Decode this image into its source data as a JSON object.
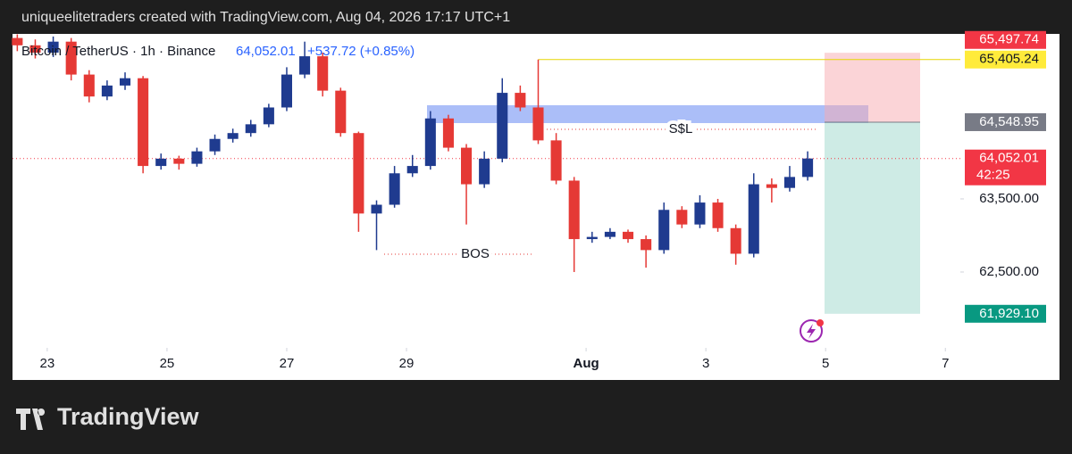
{
  "header": "uniqueelitetraders created with TradingView.com, Aug 04, 2026 17:17 UTC+1",
  "footer_logo": "TradingView",
  "chart_data": {
    "type": "candlestick",
    "symbol": "Bitcoin / TetherUS · 1h · Binance",
    "legend_price": "64,052.01",
    "legend_change": "+537.72 (+0.85%)",
    "x": [
      22.5,
      22.8,
      23.1,
      23.4,
      23.7,
      24.0,
      24.3,
      24.6,
      24.9,
      25.2,
      25.5,
      25.8,
      26.1,
      26.4,
      26.7,
      27.0,
      27.3,
      27.6,
      27.9,
      28.2,
      28.5,
      28.8,
      29.1,
      29.4,
      29.7,
      30.0,
      30.3,
      30.6,
      30.9,
      31.2,
      31.5,
      31.8,
      32.1,
      32.4,
      32.7,
      33.0,
      33.3,
      33.6,
      33.9,
      34.2,
      34.5,
      34.8,
      35.1,
      35.4,
      35.7
    ],
    "open": [
      65700,
      65600,
      65500,
      65650,
      65200,
      64900,
      65050,
      65150,
      63950,
      64050,
      63980,
      64150,
      64320,
      64400,
      64520,
      64750,
      65200,
      65450,
      64980,
      64400,
      63300,
      63420,
      63850,
      63950,
      64600,
      64200,
      63700,
      64050,
      64950,
      64750,
      64300,
      63750,
      62950,
      62980,
      63050,
      62950,
      62800,
      63350,
      63150,
      63450,
      63100,
      62750,
      63700,
      63650,
      63800
    ],
    "high": [
      65750,
      65680,
      65720,
      65700,
      65260,
      65120,
      65230,
      65180,
      64120,
      64090,
      64200,
      64380,
      64460,
      64580,
      64800,
      65300,
      65650,
      65500,
      65020,
      64420,
      63480,
      63950,
      64100,
      64700,
      64650,
      64250,
      64150,
      65150,
      65050,
      65405,
      64400,
      63800,
      63050,
      63100,
      63080,
      63000,
      63450,
      63400,
      63550,
      63500,
      63150,
      63850,
      63780,
      63950,
      64150
    ],
    "low": [
      65520,
      65420,
      65440,
      65120,
      64820,
      64850,
      64990,
      63850,
      63900,
      63900,
      63940,
      64100,
      64270,
      64350,
      64480,
      64700,
      65150,
      64900,
      64350,
      63050,
      62800,
      63380,
      63800,
      63900,
      64150,
      63150,
      63650,
      64000,
      64700,
      64250,
      63700,
      62500,
      62900,
      62950,
      62900,
      62560,
      62750,
      63100,
      63100,
      63050,
      62600,
      62700,
      63450,
      63600,
      63750
    ],
    "close": [
      65600,
      65500,
      65650,
      65200,
      64900,
      65050,
      65150,
      63950,
      64050,
      63980,
      64150,
      64320,
      64400,
      64520,
      64750,
      65200,
      65450,
      64980,
      64400,
      63300,
      63420,
      63850,
      63950,
      64600,
      64200,
      63700,
      64050,
      64950,
      64750,
      64300,
      63750,
      62950,
      62980,
      63050,
      62950,
      62800,
      63350,
      63150,
      63450,
      63100,
      62750,
      63700,
      63650,
      63800,
      64052.01
    ],
    "up_color": "#1f3b8f",
    "down_color": "#e53935",
    "xlim": [
      22.42,
      38.25
    ],
    "ylim": [
      61463,
      65756
    ],
    "xticks": [
      23,
      25,
      27,
      29,
      {
        "value": 32,
        "label": "Aug"
      },
      {
        "value": 34,
        "label": "3"
      },
      {
        "value": 36,
        "label": "5"
      },
      {
        "value": 38,
        "label": "7"
      }
    ],
    "yticks": [
      {
        "value": 63500,
        "label": "63,500.00"
      },
      {
        "value": 62500,
        "label": "62,500.00"
      }
    ],
    "levels": [
      {
        "value": 65497.74,
        "label": "65,497.74",
        "color": "#f23645"
      },
      {
        "value": 65405.24,
        "label": "65,405.24",
        "color": "#ffeb3b"
      },
      {
        "value": 64548.95,
        "label": "64,548.95",
        "color": "#787b86"
      },
      {
        "value": 64052.01,
        "label": "64,052.01",
        "color": "#f23645"
      },
      {
        "value": 61929.1,
        "label": "61,929.10",
        "color": "#089981"
      }
    ],
    "countdown": "42:25",
    "annotations": [
      "BOS",
      "S$L"
    ]
  }
}
